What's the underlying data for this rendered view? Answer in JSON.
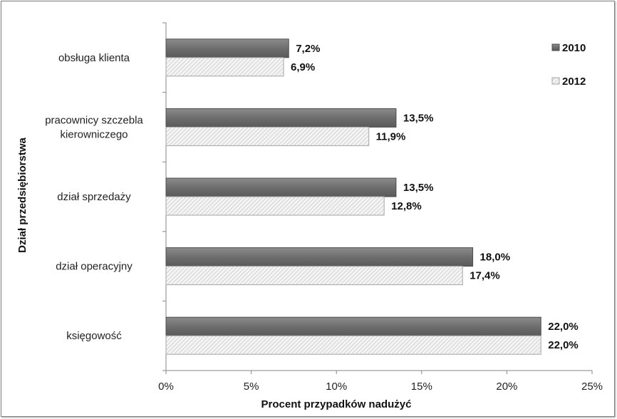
{
  "chart_data": {
    "type": "bar",
    "orientation": "horizontal",
    "categories": [
      "obsługa klienta",
      "pracownicy szczebla kierowniczego",
      "dział sprzedaży",
      "dział operacyjny",
      "księgowość"
    ],
    "category_lines": [
      [
        "obsługa klienta"
      ],
      [
        "pracownicy szczebla",
        "kierowniczego"
      ],
      [
        "dział sprzedaży"
      ],
      [
        "dział operacyjny"
      ],
      [
        "księgowość"
      ]
    ],
    "series": [
      {
        "name": "2010",
        "values": [
          7.2,
          13.5,
          13.5,
          18.0,
          22.0
        ],
        "labels": [
          "7,2%",
          "13,5%",
          "13,5%",
          "18,0%",
          "22,0%"
        ],
        "color": "#7a7a7a"
      },
      {
        "name": "2012",
        "values": [
          6.9,
          11.9,
          12.8,
          17.4,
          22.0
        ],
        "labels": [
          "6,9%",
          "11,9%",
          "12,8%",
          "17,4%",
          "22,0%"
        ],
        "color": "#e6e6e6"
      }
    ],
    "xlim": [
      0,
      25
    ],
    "xticks": [
      0,
      5,
      10,
      15,
      20,
      25
    ],
    "xtick_labels": [
      "0%",
      "5%",
      "10%",
      "15%",
      "20%",
      "25%"
    ],
    "xlabel": "Procent przypadków nadużyć",
    "ylabel": "Dział przedsiębiorstwa",
    "legend_position": "top-right",
    "grid": false
  }
}
